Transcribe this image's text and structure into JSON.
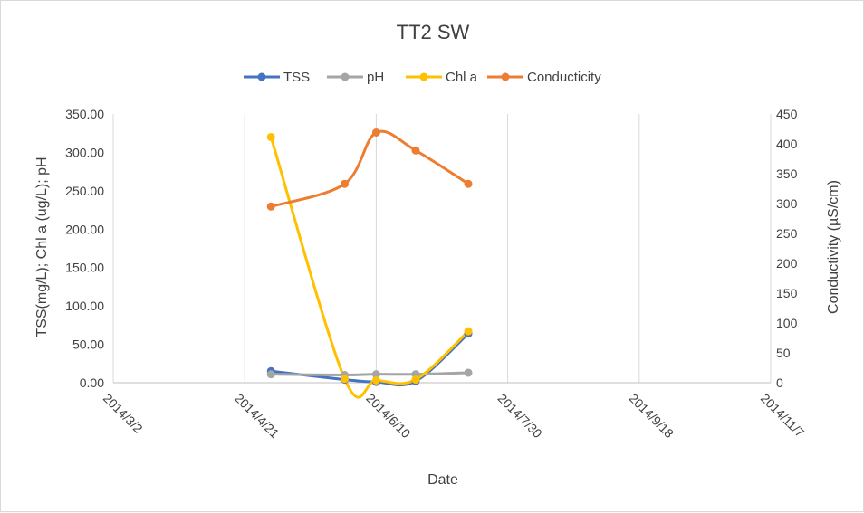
{
  "chart_data": {
    "type": "line",
    "title": "TT2 SW",
    "xlabel": "Date",
    "ylabel": "TSS(mg/L); Chl a (ug/L); pH",
    "y2label": "Conductivity  (µS/cm)",
    "x_ticks": [
      "2014/3/2",
      "2014/4/21",
      "2014/6/10",
      "2014/7/30",
      "2014/9/18",
      "2014/11/7"
    ],
    "y_ticks": [
      "0.00",
      "50.00",
      "100.00",
      "150.00",
      "200.00",
      "250.00",
      "300.00",
      "350.00"
    ],
    "y2_ticks": [
      "0",
      "50",
      "100",
      "150",
      "200",
      "250",
      "300",
      "350",
      "400",
      "450"
    ],
    "xlim": [
      "2014/3/2",
      "2014/11/7"
    ],
    "ylim": [
      0,
      350
    ],
    "y2lim": [
      0,
      450
    ],
    "smoothed": true,
    "grid": "vertical",
    "legend_position": "top",
    "series": [
      {
        "name": "TSS",
        "axis": "left",
        "color": "#4472C4",
        "x": [
          "2014/5/1",
          "2014/5/29",
          "2014/6/10",
          "2014/6/25",
          "2014/7/15"
        ],
        "y": [
          15,
          4,
          1,
          2,
          64
        ]
      },
      {
        "name": "pH",
        "axis": "left",
        "color": "#A5A5A5",
        "x": [
          "2014/5/1",
          "2014/5/29",
          "2014/6/10",
          "2014/6/25",
          "2014/7/15"
        ],
        "y": [
          11,
          10,
          11,
          11,
          13
        ]
      },
      {
        "name": "Chl a",
        "axis": "left",
        "color": "#FFC000",
        "x": [
          "2014/5/1",
          "2014/5/29",
          "2014/6/10",
          "2014/6/25",
          "2014/7/15"
        ],
        "y": [
          320,
          5,
          3,
          4,
          67
        ]
      },
      {
        "name": "Conducticity",
        "axis": "right",
        "color": "#ED7D31",
        "x": [
          "2014/5/1",
          "2014/5/29",
          "2014/6/10",
          "2014/6/25",
          "2014/7/15"
        ],
        "y": [
          295,
          333,
          419,
          389,
          333
        ]
      }
    ]
  }
}
